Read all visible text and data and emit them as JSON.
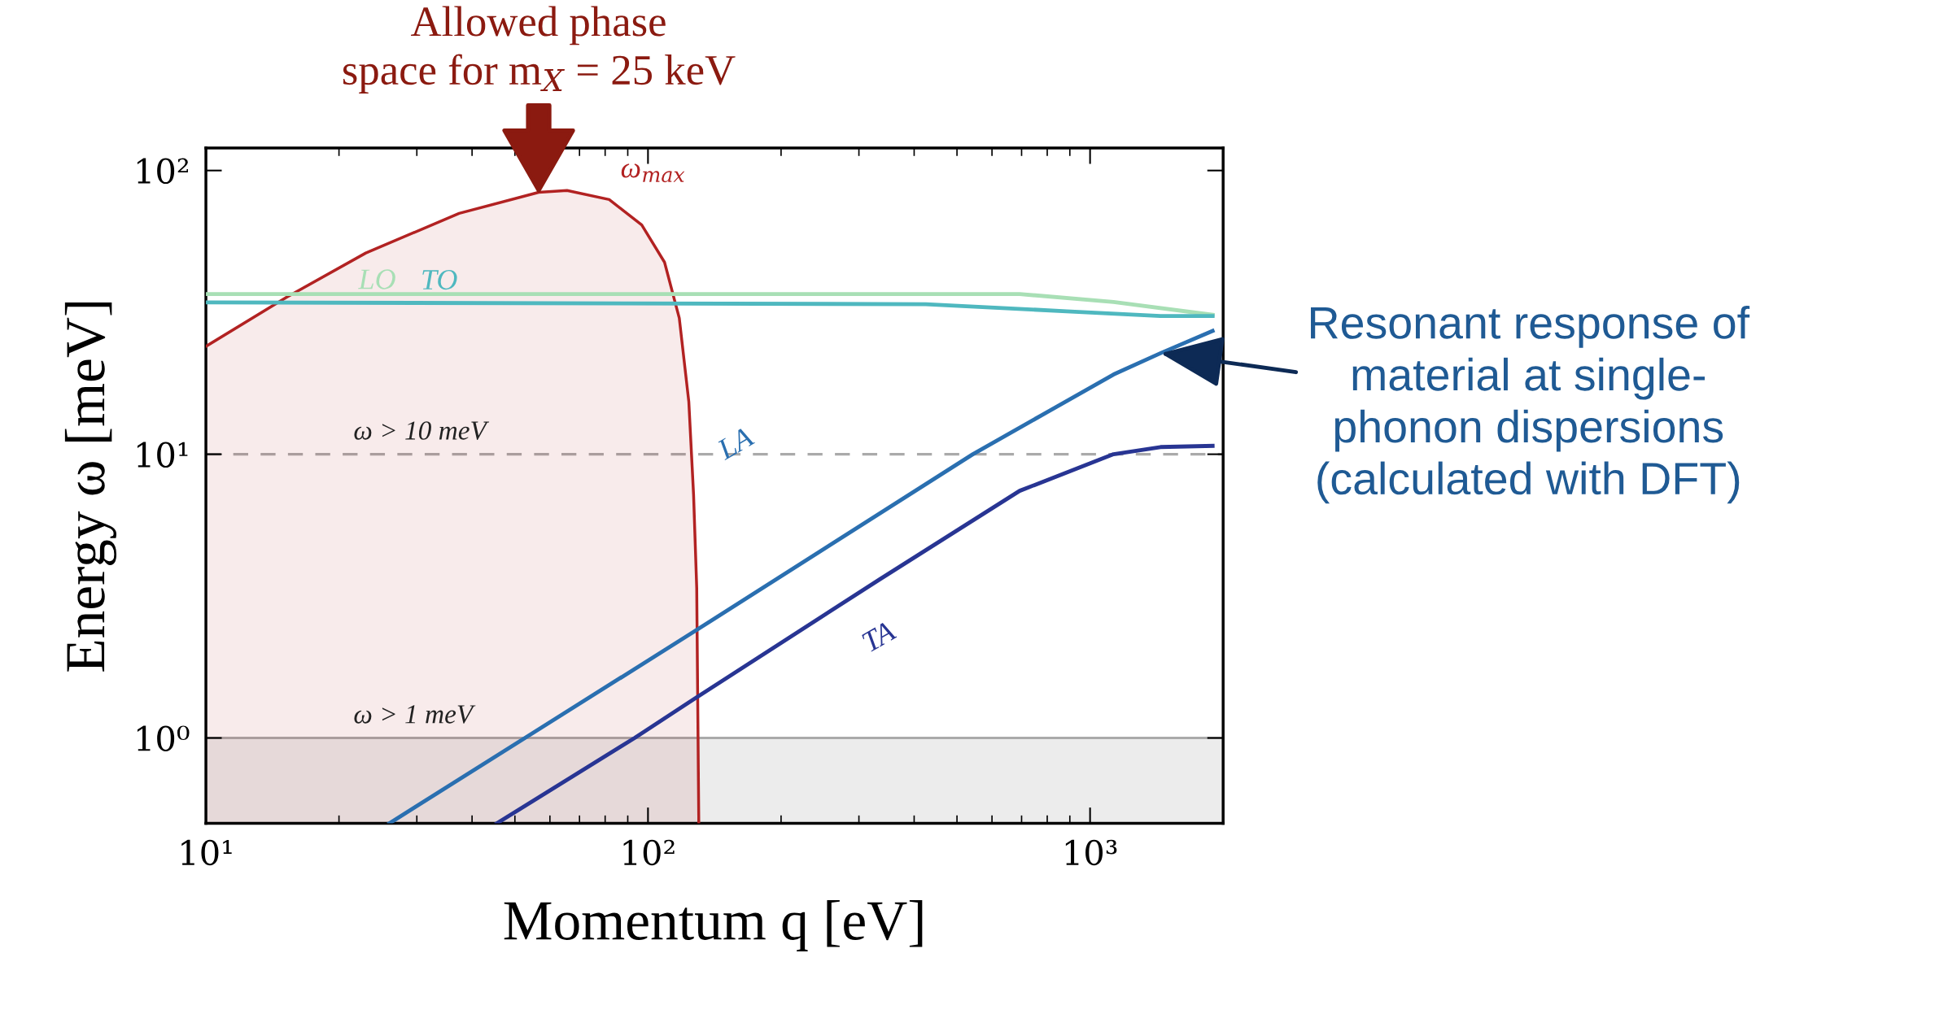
{
  "chart_data": {
    "type": "line",
    "xlabel": "Momentum q [eV]",
    "ylabel": "Energy ω [meV]",
    "log": "xy",
    "xlim": [
      10,
      2000
    ],
    "ylim": [
      0.5,
      120
    ],
    "xticks": [
      {
        "value": 10,
        "label": "10¹"
      },
      {
        "value": 100,
        "label": "10²"
      },
      {
        "value": 1000,
        "label": "10³"
      }
    ],
    "yticks": [
      {
        "value": 1,
        "label": "10⁰"
      },
      {
        "value": 10,
        "label": "10¹"
      },
      {
        "value": 100,
        "label": "10²"
      }
    ],
    "grid": false,
    "legend": false,
    "series": [
      {
        "name": "ω$_{max}$",
        "type": "area",
        "color": "#b22222",
        "x": [
          10,
          15.2,
          23,
          37.4,
          56.6,
          65.6,
          81.7,
          96.8,
          109,
          117.7,
          123.7,
          126.8,
          128.9,
          130.3
        ],
        "values": [
          24,
          35.7,
          51.2,
          70.6,
          83.8,
          85,
          79,
          64.3,
          47.5,
          30.2,
          15.3,
          7.2,
          3.37,
          0.5
        ]
      },
      {
        "name": "LO",
        "color": "#a8dfb5",
        "x": [
          10,
          693,
          1130,
          1893
        ],
        "values": [
          36.7,
          36.7,
          34.4,
          31
        ]
      },
      {
        "name": "TO",
        "color": "#4fb8bf",
        "x": [
          10,
          425,
          885,
          1443,
          1893
        ],
        "values": [
          34.3,
          33.8,
          31.9,
          30.7,
          30.7
        ]
      },
      {
        "name": "LA",
        "color": "#2a6fb0",
        "x": [
          26,
          52.7,
          126,
          543,
          1130,
          1443,
          1893
        ],
        "values": [
          0.5,
          1.0,
          2.35,
          10,
          19.1,
          22.7,
          27.2
        ]
      },
      {
        "name": "TA",
        "color": "#283593",
        "x": [
          45.5,
          93.3,
          126,
          334,
          693,
          1130,
          1443,
          1893
        ],
        "values": [
          0.5,
          1.0,
          1.36,
          3.62,
          7.43,
          10,
          10.6,
          10.7
        ]
      }
    ],
    "ref_lines": [
      {
        "axis": "y",
        "value": 10,
        "label": "ω > 10 meV",
        "color": "#aaaaaa",
        "line_style": "dashed"
      },
      {
        "axis": "y",
        "value": 1,
        "label": "ω > 1 meV",
        "color": "#aaaaaa",
        "line_style": "solid"
      }
    ],
    "bands": [
      {
        "axis": "y",
        "from": 0.5,
        "to": 1,
        "color": "#ececec"
      }
    ],
    "annotations": [
      {
        "text": "Allowed phase\nspace for m$_{X}$ = 25 keV",
        "x": 56.6,
        "y": 85
      },
      {
        "text": "Resonant response of\nmaterial at single-\nphonon dispersions\n(calculated with DFT)",
        "x": 1443,
        "y": 22.7
      }
    ]
  }
}
